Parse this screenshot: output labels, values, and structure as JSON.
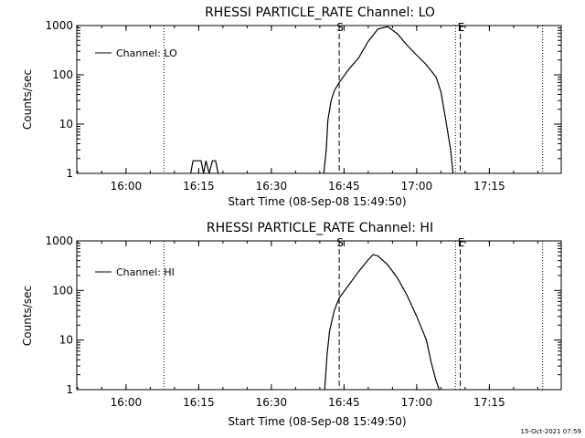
{
  "footer": {
    "timestamp": "15-Oct-2021 07:59"
  },
  "chart_data": [
    {
      "type": "line",
      "title": "RHESSI PARTICLE_RATE Channel: LO",
      "xlabel": "Start Time (08-Sep-08 15:49:50)",
      "ylabel": "Counts/sec",
      "yscale": "log",
      "ylim": [
        1,
        1000
      ],
      "xlim_minutes": [
        0,
        100
      ],
      "x_ticks": [
        "16:00",
        "16:15",
        "16:30",
        "16:45",
        "17:00",
        "17:15"
      ],
      "y_ticks": [
        "1",
        "10",
        "100",
        "1000"
      ],
      "legend": {
        "entries": [
          "Channel: LO"
        ],
        "position": "top-left"
      },
      "markers": {
        "start_label": "S",
        "end_label": "E"
      },
      "vlines_dashed_time": [
        "16:44:00",
        "17:09:00"
      ],
      "vlines_dotted_time": [
        "16:07:50",
        "17:08:00",
        "17:26:00"
      ],
      "series": [
        {
          "name": "Channel: LO",
          "points": [
            [
              "16:13:20",
              1
            ],
            [
              "16:13:50",
              1.8
            ],
            [
              "16:15:30",
              1.8
            ],
            [
              "16:16:00",
              1
            ],
            [
              "16:16:30",
              1.8
            ],
            [
              "16:17:10",
              1
            ],
            [
              "16:17:50",
              1.8
            ],
            [
              "16:18:30",
              1.8
            ],
            [
              "16:19:00",
              1
            ],
            [
              "16:40:50",
              1
            ],
            [
              "16:41:20",
              3
            ],
            [
              "16:41:40",
              12
            ],
            [
              "16:42:20",
              30
            ],
            [
              "16:43:00",
              48
            ],
            [
              "16:44:00",
              70
            ],
            [
              "16:46:00",
              130
            ],
            [
              "16:48:00",
              220
            ],
            [
              "16:50:00",
              480
            ],
            [
              "16:52:00",
              850
            ],
            [
              "16:54:00",
              950
            ],
            [
              "16:56:00",
              680
            ],
            [
              "16:58:00",
              400
            ],
            [
              "17:00:00",
              250
            ],
            [
              "17:02:00",
              160
            ],
            [
              "17:04:00",
              90
            ],
            [
              "17:05:00",
              45
            ],
            [
              "17:06:00",
              12
            ],
            [
              "17:07:00",
              3
            ],
            [
              "17:07:30",
              1
            ]
          ]
        }
      ]
    },
    {
      "type": "line",
      "title": "RHESSI PARTICLE_RATE Channel: HI",
      "xlabel": "Start Time (08-Sep-08 15:49:50)",
      "ylabel": "Counts/sec",
      "yscale": "log",
      "ylim": [
        1,
        1000
      ],
      "xlim_minutes": [
        0,
        100
      ],
      "x_ticks": [
        "16:00",
        "16:15",
        "16:30",
        "16:45",
        "17:00",
        "17:15"
      ],
      "y_ticks": [
        "1",
        "10",
        "100",
        "1000"
      ],
      "legend": {
        "entries": [
          "Channel: HI"
        ],
        "position": "top-left"
      },
      "markers": {
        "start_label": "S",
        "end_label": "E"
      },
      "vlines_dashed_time": [
        "16:44:00",
        "17:09:00"
      ],
      "vlines_dotted_time": [
        "16:07:50",
        "17:08:00",
        "17:26:00"
      ],
      "series": [
        {
          "name": "Channel: HI",
          "points": [
            [
              "16:41:00",
              1
            ],
            [
              "16:41:30",
              5
            ],
            [
              "16:42:00",
              15
            ],
            [
              "16:43:00",
              40
            ],
            [
              "16:44:00",
              70
            ],
            [
              "16:46:00",
              130
            ],
            [
              "16:48:00",
              240
            ],
            [
              "16:50:00",
              420
            ],
            [
              "16:51:00",
              530
            ],
            [
              "16:52:00",
              500
            ],
            [
              "16:54:00",
              330
            ],
            [
              "16:56:00",
              180
            ],
            [
              "16:58:00",
              80
            ],
            [
              "17:00:00",
              30
            ],
            [
              "17:02:00",
              10
            ],
            [
              "17:03:00",
              3.5
            ],
            [
              "17:04:00",
              1.5
            ],
            [
              "17:04:40",
              1
            ]
          ]
        }
      ]
    }
  ]
}
